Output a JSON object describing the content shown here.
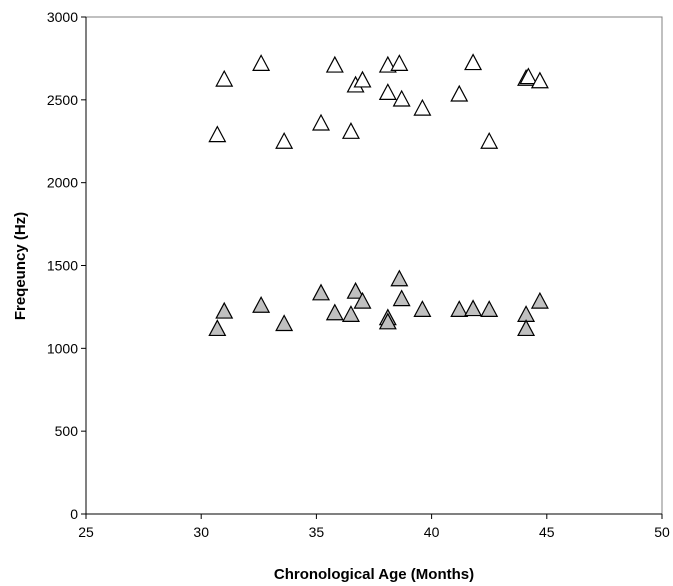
{
  "chart_data": {
    "type": "scatter",
    "title": "",
    "xlabel": "Chronological Age (Months)",
    "ylabel": "Freqeuncy (Hz)",
    "xlim": [
      25,
      50
    ],
    "ylim": [
      0,
      3000
    ],
    "x_ticks": [
      25,
      30,
      35,
      40,
      45,
      50
    ],
    "y_ticks": [
      0,
      500,
      1000,
      1500,
      2000,
      2500,
      3000
    ],
    "grid": false,
    "legend": "none",
    "marker": "triangle",
    "series": [
      {
        "fill": "#ffffff",
        "points": [
          [
            30.7,
            2290
          ],
          [
            31.0,
            2625
          ],
          [
            32.6,
            2720
          ],
          [
            33.6,
            2250
          ],
          [
            35.2,
            2360
          ],
          [
            35.8,
            2710
          ],
          [
            36.5,
            2310
          ],
          [
            36.7,
            2590
          ],
          [
            37.0,
            2620
          ],
          [
            38.1,
            2710
          ],
          [
            38.1,
            2545
          ],
          [
            38.6,
            2720
          ],
          [
            38.7,
            2505
          ],
          [
            39.6,
            2450
          ],
          [
            41.2,
            2535
          ],
          [
            41.8,
            2725
          ],
          [
            42.5,
            2250
          ],
          [
            44.1,
            2630
          ],
          [
            44.2,
            2640
          ],
          [
            44.7,
            2615
          ]
        ]
      },
      {
        "fill": "#c0c0c0",
        "points": [
          [
            30.7,
            1120
          ],
          [
            31.0,
            1225
          ],
          [
            32.6,
            1260
          ],
          [
            33.6,
            1150
          ],
          [
            35.2,
            1335
          ],
          [
            35.8,
            1215
          ],
          [
            36.5,
            1205
          ],
          [
            36.7,
            1345
          ],
          [
            37.0,
            1285
          ],
          [
            38.1,
            1185
          ],
          [
            38.1,
            1160
          ],
          [
            38.6,
            1420
          ],
          [
            38.7,
            1300
          ],
          [
            39.6,
            1235
          ],
          [
            41.2,
            1235
          ],
          [
            41.8,
            1240
          ],
          [
            42.5,
            1235
          ],
          [
            44.1,
            1205
          ],
          [
            44.1,
            1120
          ],
          [
            44.7,
            1285
          ]
        ]
      }
    ]
  }
}
